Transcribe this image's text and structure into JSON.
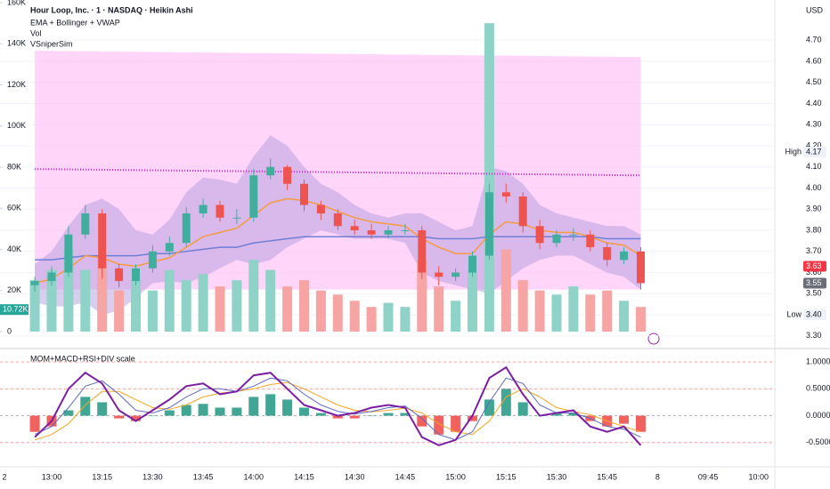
{
  "chart_data": [
    {
      "type": "candlestick",
      "title": "Hour Loop, Inc. · 1 · NASDAQ · Heikin Ashi",
      "indicator_labels": [
        "EMA + Bollinger + VWAP",
        "Vol",
        "VSniperSim"
      ],
      "currency": "USD",
      "categories": [
        "2",
        null,
        null,
        "13:00",
        null,
        null,
        "13:15",
        null,
        null,
        "13:30",
        null,
        null,
        "13:45",
        null,
        null,
        "14:00",
        null,
        null,
        "14:15",
        null,
        null,
        "14:30",
        null,
        null,
        "14:45",
        null,
        null,
        "15:00",
        null,
        null,
        "15:15",
        null,
        null,
        "15:30",
        null,
        null,
        "15:45",
        null,
        null,
        "8",
        null,
        null,
        "09:45",
        null,
        null,
        "10:00"
      ],
      "open": [
        null,
        null,
        3.54,
        3.56,
        3.6,
        3.78,
        3.88,
        3.62,
        3.56,
        3.62,
        3.7,
        3.74,
        3.88,
        3.92,
        3.86,
        3.86,
        4.06,
        4.1,
        4.02,
        3.92,
        3.88,
        3.82,
        3.8,
        3.78,
        3.8,
        3.8,
        3.6,
        3.58,
        3.6,
        3.68,
        3.98,
        3.96,
        3.82,
        3.74,
        3.78,
        3.78,
        3.72,
        3.66,
        3.7,
        null,
        null,
        null,
        null,
        null,
        null,
        null
      ],
      "high": [
        null,
        null,
        3.58,
        3.63,
        3.82,
        3.92,
        3.9,
        3.64,
        3.64,
        3.73,
        3.77,
        3.91,
        3.95,
        3.94,
        3.9,
        4.09,
        4.14,
        4.11,
        4.04,
        3.94,
        3.9,
        3.85,
        3.83,
        3.82,
        3.83,
        3.82,
        3.63,
        3.62,
        3.7,
        4.02,
        4.02,
        3.98,
        3.85,
        3.8,
        3.81,
        3.8,
        3.74,
        3.72,
        3.72,
        null,
        null,
        null,
        null,
        null,
        null,
        null
      ],
      "low": [
        null,
        null,
        3.51,
        3.54,
        3.58,
        3.76,
        3.57,
        3.53,
        3.54,
        3.6,
        3.68,
        3.72,
        3.86,
        3.84,
        3.83,
        3.84,
        4.04,
        3.99,
        3.89,
        3.85,
        3.8,
        3.78,
        3.76,
        3.76,
        3.78,
        3.57,
        3.54,
        3.56,
        3.58,
        3.66,
        3.93,
        3.79,
        3.71,
        3.72,
        3.75,
        3.7,
        3.63,
        3.64,
        3.52,
        null,
        null,
        null,
        null,
        null,
        null,
        null
      ],
      "close": [
        null,
        null,
        3.56,
        3.6,
        3.78,
        3.88,
        3.62,
        3.56,
        3.62,
        3.7,
        3.74,
        3.88,
        3.92,
        3.86,
        3.86,
        4.06,
        4.1,
        4.02,
        3.92,
        3.88,
        3.82,
        3.8,
        3.78,
        3.8,
        3.8,
        3.6,
        3.58,
        3.6,
        3.68,
        3.98,
        3.96,
        3.82,
        3.74,
        3.78,
        3.78,
        3.72,
        3.66,
        3.7,
        3.55,
        null,
        null,
        null,
        null,
        null,
        null,
        null
      ],
      "up_color": "#3fae9e",
      "down_color": "#ef5350",
      "volume": [
        null,
        null,
        25000,
        30000,
        40000,
        30000,
        35000,
        20000,
        25000,
        20000,
        30000,
        25000,
        28000,
        22000,
        25000,
        35000,
        30000,
        22000,
        25000,
        20000,
        18000,
        15000,
        12000,
        14000,
        12000,
        35000,
        22000,
        15000,
        30000,
        150000,
        40000,
        25000,
        20000,
        18000,
        22000,
        18000,
        20000,
        15000,
        12000,
        null,
        null,
        null,
        null,
        null,
        null,
        null
      ],
      "volume_up_color": "#8fd3c8",
      "volume_down_color": "#f6a4a4",
      "ema": [
        null,
        null,
        3.55,
        3.57,
        3.62,
        3.68,
        3.67,
        3.64,
        3.63,
        3.65,
        3.67,
        3.72,
        3.77,
        3.79,
        3.81,
        3.87,
        3.93,
        3.95,
        3.94,
        3.92,
        3.89,
        3.86,
        3.84,
        3.83,
        3.82,
        3.76,
        3.72,
        3.69,
        3.69,
        3.78,
        3.84,
        3.83,
        3.8,
        3.79,
        3.79,
        3.77,
        3.74,
        3.73,
        3.68,
        null,
        null,
        null,
        null,
        null,
        null,
        null
      ],
      "ema_color": "#f59b42",
      "vwap": [
        null,
        null,
        3.66,
        3.66,
        3.67,
        3.68,
        3.68,
        3.68,
        3.68,
        3.69,
        3.69,
        3.7,
        3.71,
        3.72,
        3.72,
        3.74,
        3.75,
        3.76,
        3.77,
        3.77,
        3.77,
        3.77,
        3.77,
        3.77,
        3.77,
        3.77,
        3.76,
        3.76,
        3.76,
        3.77,
        3.77,
        3.77,
        3.77,
        3.77,
        3.77,
        3.77,
        3.76,
        3.76,
        3.76,
        null,
        null,
        null,
        null,
        null,
        null,
        null
      ],
      "vwap_color": "#6f7fd6",
      "bb_upper": [
        null,
        null,
        3.64,
        3.7,
        3.82,
        3.92,
        3.95,
        3.9,
        3.8,
        3.78,
        3.85,
        3.98,
        4.05,
        4.04,
        4.02,
        4.15,
        4.25,
        4.2,
        4.1,
        4.02,
        3.98,
        3.92,
        3.88,
        3.86,
        3.88,
        3.88,
        3.84,
        3.8,
        3.82,
        4.1,
        4.08,
        4.02,
        3.92,
        3.88,
        3.86,
        3.84,
        3.82,
        3.82,
        3.78,
        null,
        null,
        null,
        null,
        null,
        null,
        null
      ],
      "bb_lower": [
        null,
        null,
        3.46,
        3.44,
        3.44,
        3.46,
        3.4,
        3.42,
        3.48,
        3.55,
        3.56,
        3.55,
        3.58,
        3.62,
        3.66,
        3.64,
        3.66,
        3.72,
        3.76,
        3.8,
        3.78,
        3.76,
        3.76,
        3.76,
        3.74,
        3.6,
        3.56,
        3.54,
        3.52,
        3.5,
        3.56,
        3.62,
        3.66,
        3.68,
        3.68,
        3.64,
        3.6,
        3.58,
        3.52,
        null,
        null,
        null,
        null,
        null,
        null,
        null
      ],
      "bb_color": "#b39ddb",
      "zone": {
        "top": [
          4.65,
          4.62
        ],
        "bottom": [
          3.52,
          3.52
        ],
        "color": "#ffb3f5"
      },
      "level": {
        "values": [
          4.09,
          4.06
        ],
        "color": "#d41ad4"
      },
      "ylim": [
        3.27,
        4.89
      ],
      "yticks": [
        {
          "value": 3.3,
          "label": "3.30"
        },
        {
          "value": 3.4,
          "label": "3.40"
        },
        {
          "value": 3.5,
          "label": "3.50"
        },
        {
          "value": 3.6,
          "label": "3.60"
        },
        {
          "value": 3.7,
          "label": "3.70"
        },
        {
          "value": 3.8,
          "label": "3.80"
        },
        {
          "value": 3.9,
          "label": "3.90"
        },
        {
          "value": 4.0,
          "label": "4.00"
        },
        {
          "value": 4.1,
          "label": "4.10"
        },
        {
          "value": 4.2,
          "label": "4.20"
        },
        {
          "value": 4.3,
          "label": "4.30"
        },
        {
          "value": 4.4,
          "label": "4.40"
        },
        {
          "value": 4.5,
          "label": "4.50"
        },
        {
          "value": 4.6,
          "label": "4.60"
        },
        {
          "value": 4.7,
          "label": "4.70"
        }
      ],
      "y2lim": [
        -5200,
        161300
      ],
      "y2ticks": [
        0,
        {
          "value": 20000,
          "label": "20K"
        },
        {
          "value": 40000,
          "label": "40K"
        },
        {
          "value": 60000,
          "label": "60K"
        },
        {
          "value": 80000,
          "label": "80K"
        },
        {
          "value": 100000,
          "label": "100K"
        },
        {
          "value": 120000,
          "label": "120K"
        },
        {
          "value": 140000,
          "label": "140K"
        },
        {
          "value": 160000,
          "label": "160K"
        }
      ],
      "tags": [
        {
          "text": "High",
          "price": 4.17,
          "color": "#eef1f8"
        },
        {
          "text": "Low",
          "price": {
            "value": 3.4,
            "label": "3.40"
          },
          "color": "#eef1f8"
        },
        {
          "price": 3.63,
          "color": "#f23645"
        },
        {
          "price": 3.55,
          "color": "#6b6e78"
        }
      ],
      "volume_tag": {
        "value": 10720,
        "label": "10.72K",
        "color": "#26a69a"
      }
    },
    {
      "type": "oscillator",
      "title": "MOM+MACD+RSI+DIV scale",
      "histogram": [
        null,
        null,
        -0.3,
        -0.2,
        0.1,
        0.35,
        0.25,
        -0.05,
        -0.1,
        0.0,
        0.1,
        0.2,
        0.22,
        0.15,
        0.15,
        0.35,
        0.4,
        0.3,
        0.15,
        0.05,
        -0.05,
        -0.05,
        0.0,
        0.05,
        0.05,
        -0.2,
        -0.35,
        -0.3,
        -0.1,
        0.3,
        0.5,
        0.25,
        0.0,
        0.05,
        0.05,
        -0.1,
        -0.2,
        -0.15,
        -0.3,
        null,
        null,
        null,
        null,
        null,
        null,
        null
      ],
      "pos_color": "#2e9c8a",
      "neg_color": "#f0504c",
      "lines": [
        {
          "color": "#f5a623",
          "width": 1,
          "values": [
            null,
            null,
            -0.45,
            -0.35,
            -0.15,
            0.2,
            0.45,
            0.45,
            0.3,
            0.15,
            0.12,
            0.2,
            0.35,
            0.42,
            0.45,
            0.5,
            0.58,
            0.62,
            0.5,
            0.35,
            0.2,
            0.1,
            0.07,
            0.1,
            0.14,
            0.05,
            -0.15,
            -0.3,
            -0.35,
            -0.1,
            0.35,
            0.5,
            0.35,
            0.15,
            0.08,
            0.02,
            -0.1,
            -0.2,
            -0.3,
            null,
            null,
            null,
            null,
            null,
            null,
            null
          ]
        },
        {
          "color": "#5c6bc0",
          "width": 1,
          "values": [
            null,
            null,
            -0.35,
            -0.2,
            0.15,
            0.55,
            0.65,
            0.4,
            0.1,
            0.05,
            0.15,
            0.35,
            0.5,
            0.5,
            0.45,
            0.55,
            0.7,
            0.65,
            0.4,
            0.2,
            0.08,
            0.03,
            0.08,
            0.15,
            0.18,
            -0.05,
            -0.35,
            -0.45,
            -0.3,
            0.25,
            0.7,
            0.6,
            0.2,
            0.05,
            0.05,
            -0.05,
            -0.2,
            -0.25,
            -0.4,
            null,
            null,
            null,
            null,
            null,
            null,
            null
          ]
        },
        {
          "color": "#7b1fa2",
          "width": 2,
          "values": [
            null,
            null,
            -0.4,
            -0.1,
            0.5,
            0.8,
            0.6,
            0.1,
            -0.1,
            0.1,
            0.3,
            0.55,
            0.6,
            0.4,
            0.45,
            0.75,
            0.8,
            0.5,
            0.2,
            0.1,
            0.0,
            0.05,
            0.15,
            0.2,
            0.15,
            -0.4,
            -0.55,
            -0.45,
            0.0,
            0.7,
            0.9,
            0.4,
            0.0,
            0.05,
            0.1,
            -0.2,
            -0.3,
            -0.2,
            -0.55,
            null,
            null,
            null,
            null,
            null,
            null,
            null
          ]
        }
      ],
      "ylim": [
        -0.95,
        1.2
      ],
      "yticks": [
        {
          "value": 1,
          "label": "1.0000"
        },
        {
          "value": 0.5,
          "label": "0.5000"
        },
        {
          "value": 0,
          "label": "0.0000"
        },
        {
          "value": -0.5,
          "label": "-0.5000"
        }
      ]
    }
  ]
}
